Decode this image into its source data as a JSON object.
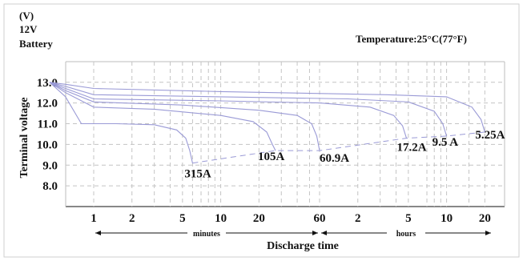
{
  "header": {
    "unit": "(V)",
    "voltage": "12V",
    "product": "Battery",
    "temperature": "Temperature:25°C(77°F)"
  },
  "chart_data": {
    "type": "line",
    "title": "",
    "xlabel": "Discharge time",
    "ylabel": "Terminal voltage",
    "x_scale": "log",
    "x_unit": "minutes",
    "xlim": [
      0.42,
      1380
    ],
    "ylim": [
      7.0,
      13.3
    ],
    "y_ticks": [
      8.0,
      9.0,
      10.0,
      11.0,
      12.0,
      13.0
    ],
    "y_tick_labels": [
      "8.0",
      "9.0",
      "10.0",
      "11.0",
      "12.0",
      "13.0"
    ],
    "x_ticks_minutes": [
      1,
      2,
      5,
      10,
      20,
      60,
      120,
      300,
      600,
      1200
    ],
    "x_tick_labels": [
      "1",
      "2",
      "5",
      "10",
      "20",
      "60",
      "2",
      "5",
      "10",
      "20"
    ],
    "x_segments": [
      {
        "label": "minutes",
        "from": 1,
        "to": 60
      },
      {
        "label": "hours",
        "from": 60,
        "to": 1380
      }
    ],
    "grid": true,
    "series": [
      {
        "name": "315A",
        "x": [
          0.45,
          0.6,
          0.8,
          1.5,
          3.0,
          4.5,
          5.3,
          5.7,
          6.0
        ],
        "y": [
          13.0,
          12.3,
          11.0,
          11.0,
          10.95,
          10.7,
          10.3,
          9.7,
          9.1
        ]
      },
      {
        "name": "105A",
        "x": [
          0.45,
          0.6,
          1.0,
          3.0,
          10.0,
          18.0,
          23.0,
          25.5,
          27.0
        ],
        "y": [
          13.0,
          12.5,
          11.8,
          11.7,
          11.4,
          11.1,
          10.6,
          10.0,
          9.7
        ]
      },
      {
        "name": "60.9A",
        "x": [
          0.45,
          0.6,
          1.0,
          5.0,
          20.0,
          40.0,
          52.0,
          57.0,
          60.0
        ],
        "y": [
          13.0,
          12.6,
          12.05,
          11.9,
          11.65,
          11.4,
          11.0,
          10.4,
          9.7
        ]
      },
      {
        "name": "17.2A",
        "x": [
          0.45,
          0.6,
          1.0,
          10.0,
          60.0,
          150.0,
          230.0,
          270.0,
          290.0
        ],
        "y": [
          13.0,
          12.7,
          12.2,
          12.1,
          12.0,
          11.8,
          11.4,
          10.9,
          10.3
        ]
      },
      {
        "name": "9.5 A",
        "x": [
          0.45,
          0.6,
          1.0,
          10.0,
          100.0,
          300.0,
          480.0,
          560.0,
          600.0
        ],
        "y": [
          13.0,
          12.8,
          12.4,
          12.3,
          12.2,
          12.05,
          11.6,
          11.0,
          10.4
        ]
      },
      {
        "name": "5.25A",
        "x": [
          0.45,
          0.6,
          1.0,
          10.0,
          200.0,
          600.0,
          950.0,
          1120.0,
          1200.0
        ],
        "y": [
          13.0,
          12.9,
          12.7,
          12.55,
          12.4,
          12.3,
          11.8,
          11.2,
          10.6
        ]
      }
    ],
    "end_voltage_line": {
      "x": [
        6.0,
        27.0,
        60.0,
        290.0,
        600.0,
        1200.0
      ],
      "y": [
        9.1,
        9.7,
        9.7,
        10.3,
        10.4,
        10.6
      ]
    }
  }
}
